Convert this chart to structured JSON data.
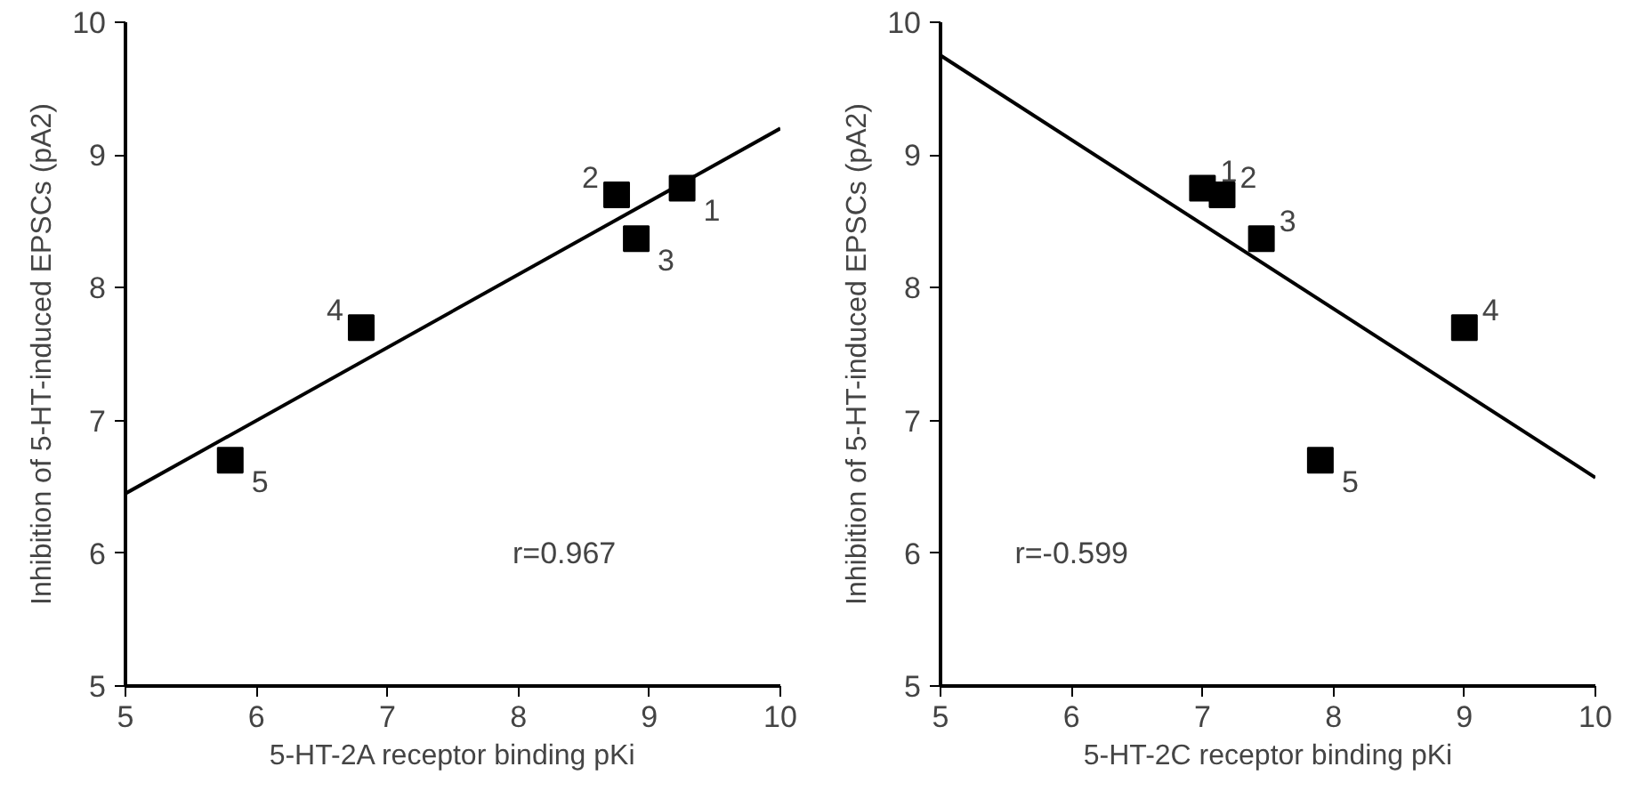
{
  "chart_data": [
    {
      "type": "scatter",
      "xlabel": "5-HT-2A receptor binding pKi",
      "ylabel": "Inhibition of 5-HT-induced EPSCs (pA2)",
      "grid": false,
      "series": [
        {
          "color": "#000000",
          "marker": "square",
          "x": [
            9.25,
            8.75,
            8.9,
            6.8,
            5.8
          ],
          "values": [
            8.75,
            8.7,
            8.37,
            7.7,
            6.7
          ]
        },
        {
          "type": "line",
          "color": "#000000",
          "x": [
            5,
            10
          ],
          "values": [
            6.45,
            9.2
          ]
        }
      ],
      "xlim": [
        5,
        10
      ],
      "ylim": [
        5,
        10
      ],
      "xticks": [
        5,
        6,
        7,
        8,
        9,
        10
      ],
      "yticks": [
        5,
        6,
        7,
        8,
        9,
        10
      ],
      "annotations": [
        {
          "text": "1",
          "x": 9.25,
          "y": 8.75
        },
        {
          "text": "2",
          "x": 8.75,
          "y": 8.7
        },
        {
          "text": "3",
          "x": 8.9,
          "y": 8.37
        },
        {
          "text": "4",
          "x": 6.8,
          "y": 7.7
        },
        {
          "text": "5",
          "x": 5.8,
          "y": 6.7
        },
        "r=0.967"
      ]
    },
    {
      "type": "scatter",
      "xlabel": "5-HT-2C receptor binding pKi",
      "ylabel": "Inhibition of 5-HT-induced EPSCs (pA2)",
      "grid": false,
      "series": [
        {
          "color": "#000000",
          "marker": "square",
          "x": [
            7.0,
            7.15,
            7.45,
            9.0,
            7.9
          ],
          "values": [
            8.75,
            8.7,
            8.37,
            7.7,
            6.7
          ]
        },
        {
          "type": "line",
          "color": "#000000",
          "x": [
            5,
            10
          ],
          "values": [
            9.75,
            6.57
          ]
        }
      ],
      "xlim": [
        5,
        10
      ],
      "ylim": [
        5,
        10
      ],
      "xticks": [
        5,
        6,
        7,
        8,
        9,
        10
      ],
      "yticks": [
        5,
        6,
        7,
        8,
        9,
        10
      ],
      "annotations": [
        {
          "text": "1",
          "x": 7.0,
          "y": 8.75
        },
        {
          "text": "2",
          "x": 7.15,
          "y": 8.7
        },
        {
          "text": "3",
          "x": 7.45,
          "y": 8.37
        },
        {
          "text": "4",
          "x": 9.0,
          "y": 7.7
        },
        {
          "text": "5",
          "x": 7.9,
          "y": 6.7
        },
        "r=-0.599"
      ]
    }
  ]
}
